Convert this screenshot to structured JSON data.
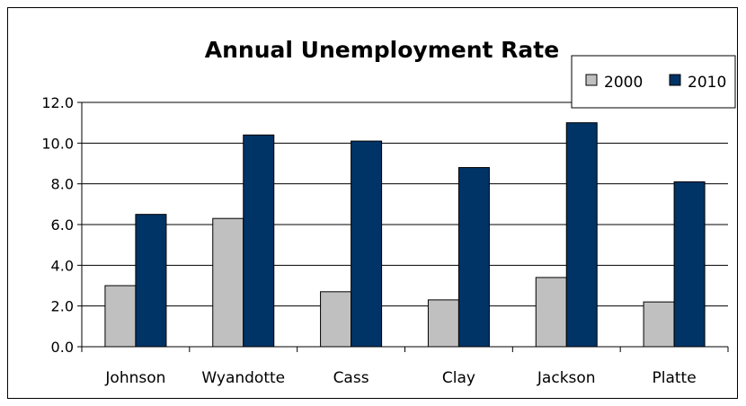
{
  "chart_data": {
    "type": "bar",
    "title": "Annual Unemployment Rate",
    "xlabel": "",
    "ylabel": "",
    "categories": [
      "Johnson",
      "Wyandotte",
      "Cass",
      "Clay",
      "Jackson",
      "Platte"
    ],
    "series": [
      {
        "name": "2000",
        "values": [
          3.0,
          6.3,
          2.7,
          2.3,
          3.4,
          2.2
        ],
        "color": "#c0c0c0"
      },
      {
        "name": "2010",
        "values": [
          6.5,
          10.4,
          10.1,
          8.8,
          11.0,
          8.1
        ],
        "color": "#003366"
      }
    ],
    "ylim": [
      0,
      12
    ],
    "yticks": [
      "0.0",
      "2.0",
      "4.0",
      "6.0",
      "8.0",
      "10.0",
      "12.0"
    ],
    "grid": true,
    "legend": "top-right"
  }
}
